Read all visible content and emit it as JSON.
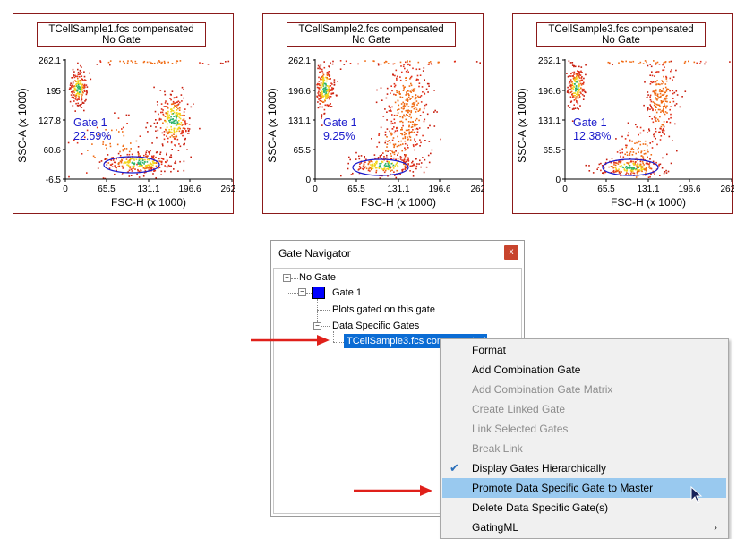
{
  "plots": [
    {
      "title_line1": "TCellSample1.fcs compensated",
      "title_line2": "No Gate",
      "y_ticks": [
        "262.1",
        "195",
        "127.8",
        "60.6",
        "-6.5"
      ],
      "x_ticks": [
        "0",
        "65.5",
        "131.1",
        "196.6",
        "262.1"
      ],
      "ylabel": "SSC-A (x 1000)",
      "xlabel": "FSC-H (x 1000)",
      "gate_name": "Gate 1",
      "gate_percent": "22.59%"
    },
    {
      "title_line1": "TCellSample2.fcs compensated",
      "title_line2": "No Gate",
      "y_ticks": [
        "262.1",
        "196.6",
        "131.1",
        "65.5",
        "0"
      ],
      "x_ticks": [
        "0",
        "65.5",
        "131.1",
        "196.6",
        "262.1"
      ],
      "ylabel": "SSC-A (x 1000)",
      "xlabel": "FSC-H (x 1000)",
      "gate_name": "Gate 1",
      "gate_percent": "9.25%"
    },
    {
      "title_line1": "TCellSample3.fcs compensated",
      "title_line2": "No Gate",
      "y_ticks": [
        "262.1",
        "196.6",
        "131.1",
        "65.5",
        "0"
      ],
      "x_ticks": [
        "0",
        "65.5",
        "131.1",
        "196.6",
        "262.1"
      ],
      "ylabel": "SSC-A (x 1000)",
      "xlabel": "FSC-H (x 1000)",
      "gate_name": "Gate 1",
      "gate_percent": "12.38%"
    }
  ],
  "navigator": {
    "title": "Gate Navigator",
    "close_label": "x",
    "tree": {
      "root": "No Gate",
      "gate": "Gate 1",
      "gate_color": "#0000ff",
      "plots_node": "Plots gated on this gate",
      "dsg_node": "Data Specific Gates",
      "selected_node": "TCellSample3.fcs compensated"
    }
  },
  "context_menu": {
    "items": [
      {
        "label": "Format",
        "enabled": true
      },
      {
        "label": "Add Combination Gate",
        "enabled": true
      },
      {
        "label": "Add Combination Gate Matrix",
        "enabled": false
      },
      {
        "label": "Create Linked Gate",
        "enabled": false
      },
      {
        "label": "Link Selected Gates",
        "enabled": false
      },
      {
        "label": "Break Link",
        "enabled": false
      },
      {
        "label": "Display Gates Hierarchically",
        "enabled": true,
        "checked": true
      },
      {
        "label": "Promote Data Specific Gate to Master",
        "enabled": true,
        "highlighted": true
      },
      {
        "label": "Delete Data Specific Gate(s)",
        "enabled": true
      },
      {
        "label": "GatingML",
        "enabled": true,
        "submenu": true
      }
    ]
  },
  "colors": {
    "accent_red": "#e0201a",
    "selection_blue": "#0b6cd4",
    "menu_hover": "#99c9ef",
    "gate_blue": "#1a1acc"
  },
  "icons": [
    "close-icon",
    "checkmark-icon",
    "submenu-arrow-icon",
    "mouse-cursor-icon",
    "red-arrow-icon"
  ]
}
